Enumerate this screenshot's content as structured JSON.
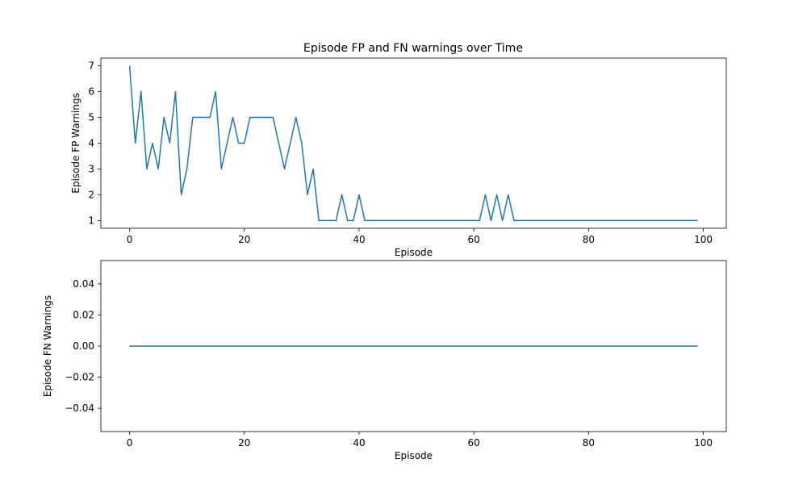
{
  "figure_title": "Episode FP and FN warnings over Time",
  "colors": {
    "line": "#1f77b4",
    "axes": "#000000",
    "background": "#ffffff"
  },
  "chart_data": [
    {
      "type": "line",
      "title": "Episode FP and FN warnings over Time",
      "xlabel": "Episode",
      "ylabel": "Episode FP Warnings",
      "xlim": [
        -5,
        104
      ],
      "ylim": [
        0.7,
        7.3
      ],
      "xticks": [
        0,
        20,
        40,
        60,
        80,
        100
      ],
      "xtick_labels": [
        "0",
        "20",
        "40",
        "60",
        "80",
        "100"
      ],
      "yticks": [
        1,
        2,
        3,
        4,
        5,
        6,
        7
      ],
      "ytick_labels": [
        "1",
        "2",
        "3",
        "4",
        "5",
        "6",
        "7"
      ],
      "grid": false,
      "series": [
        {
          "x_start": 0,
          "values": [
            7,
            4,
            6,
            3,
            4,
            3,
            5,
            4,
            6,
            2,
            3,
            5,
            5,
            5,
            5,
            6,
            3,
            4,
            5,
            4,
            4,
            5,
            5,
            5,
            5,
            5,
            4,
            3,
            4,
            5,
            4,
            2,
            3,
            1,
            1,
            1,
            1,
            2,
            1,
            1,
            2,
            1,
            1,
            1,
            1,
            1,
            1,
            1,
            1,
            1,
            1,
            1,
            1,
            1,
            1,
            1,
            1,
            1,
            1,
            1,
            1,
            1,
            2,
            1,
            2,
            1,
            2,
            1,
            1,
            1,
            1,
            1,
            1,
            1,
            1,
            1,
            1,
            1,
            1,
            1,
            1,
            1,
            1,
            1,
            1,
            1,
            1,
            1,
            1,
            1,
            1,
            1,
            1,
            1,
            1,
            1,
            1,
            1,
            1,
            1
          ]
        }
      ]
    },
    {
      "type": "line",
      "title": "",
      "xlabel": "Episode",
      "ylabel": "Episode FN Warnings",
      "xlim": [
        -5,
        104
      ],
      "ylim": [
        -0.055,
        0.055
      ],
      "xticks": [
        0,
        20,
        40,
        60,
        80,
        100
      ],
      "xtick_labels": [
        "0",
        "20",
        "40",
        "60",
        "80",
        "100"
      ],
      "yticks": [
        0.04,
        0.02,
        0.0,
        -0.02,
        -0.04
      ],
      "ytick_labels": [
        "0.04",
        "0.02",
        "0.00",
        "−0.02",
        "−0.04"
      ],
      "grid": false,
      "series": [
        {
          "x_start": 0,
          "values": [
            0,
            0,
            0,
            0,
            0,
            0,
            0,
            0,
            0,
            0,
            0,
            0,
            0,
            0,
            0,
            0,
            0,
            0,
            0,
            0,
            0,
            0,
            0,
            0,
            0,
            0,
            0,
            0,
            0,
            0,
            0,
            0,
            0,
            0,
            0,
            0,
            0,
            0,
            0,
            0,
            0,
            0,
            0,
            0,
            0,
            0,
            0,
            0,
            0,
            0,
            0,
            0,
            0,
            0,
            0,
            0,
            0,
            0,
            0,
            0,
            0,
            0,
            0,
            0,
            0,
            0,
            0,
            0,
            0,
            0,
            0,
            0,
            0,
            0,
            0,
            0,
            0,
            0,
            0,
            0,
            0,
            0,
            0,
            0,
            0,
            0,
            0,
            0,
            0,
            0,
            0,
            0,
            0,
            0,
            0,
            0,
            0,
            0,
            0,
            0
          ]
        }
      ]
    }
  ]
}
